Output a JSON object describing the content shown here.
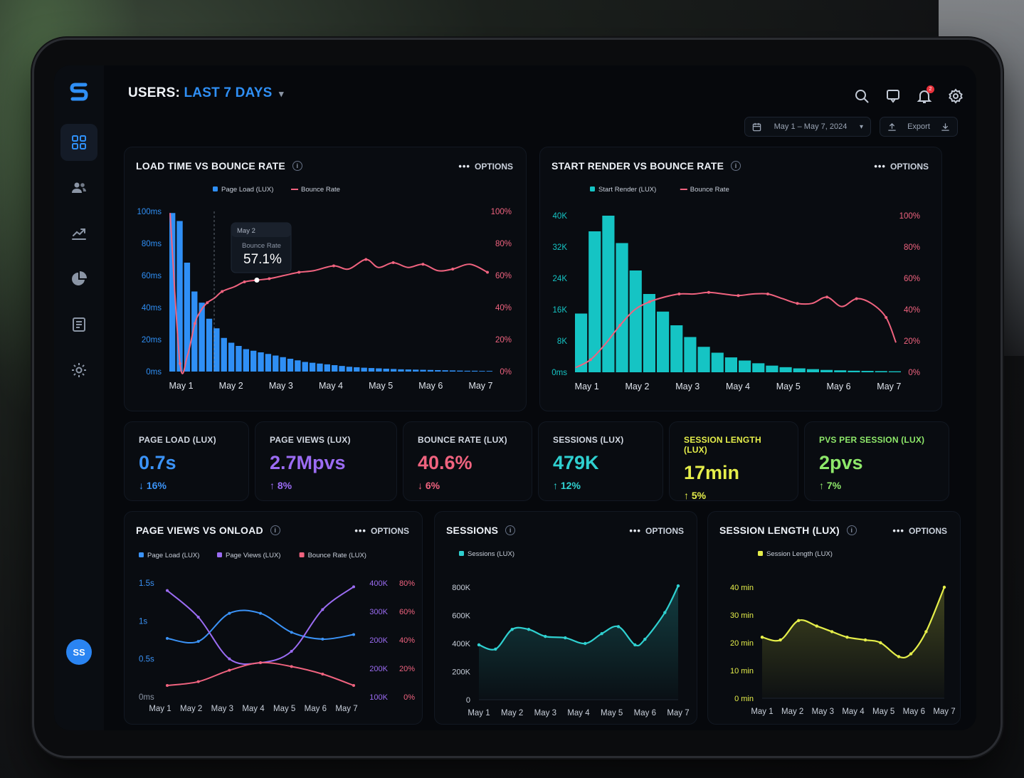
{
  "header": {
    "users_label": "USERS:",
    "period": "LAST 7 DAYS"
  },
  "toolbar": {
    "date_range": "May 1 – May 7, 2024",
    "export_label": "Export"
  },
  "notifications": {
    "count": "2"
  },
  "user": {
    "initials": "SS"
  },
  "options_label": "OPTIONS",
  "cards": {
    "load": {
      "title": "LOAD TIME VS BOUNCE RATE"
    },
    "render": {
      "title": "START RENDER VS BOUNCE RATE"
    },
    "pvo": {
      "title": "PAGE VIEWS VS ONLOAD"
    },
    "sessions": {
      "title": "SESSIONS"
    },
    "slen": {
      "title": "SESSION LENGTH (LUX)"
    }
  },
  "tooltip": {
    "date": "May 2",
    "label": "Bounce Rate",
    "value": "57.1%"
  },
  "stats": [
    {
      "label": "PAGE LOAD (LUX)",
      "value": "0.7s",
      "delta": "↓ 16%",
      "color": "#3b93f7"
    },
    {
      "label": "PAGE VIEWS (LUX)",
      "value": "2.7Mpvs",
      "delta": "↑ 8%",
      "color": "#9b6cf3"
    },
    {
      "label": "BOUNCE RATE (LUX)",
      "value": "40.6%",
      "delta": "↓ 6%",
      "color": "#f0637f"
    },
    {
      "label": "SESSIONS (LUX)",
      "value": "479K",
      "delta": "↑ 12%",
      "color": "#2fd0d0"
    },
    {
      "label": "SESSION LENGTH (LUX)",
      "value": "17min",
      "delta": "↑ 5%",
      "color": "#e5ee4a"
    },
    {
      "label": "PVS PER SESSION (LUX)",
      "value": "2pvs",
      "delta": "↑ 7%",
      "color": "#8ee86a"
    }
  ],
  "colors": {
    "blue": "#2f8ff5",
    "teal": "#15c4c4",
    "pink": "#f0637f",
    "purple": "#9b6cf3",
    "yellow": "#e5ee4a",
    "cyan": "#2fd0d0"
  },
  "chart_data": [
    {
      "type": "bar",
      "id": "load",
      "title": "LOAD TIME VS BOUNCE RATE",
      "x_ticks": [
        "May 1",
        "May 2",
        "May 3",
        "May 4",
        "May 5",
        "May 6",
        "May 7"
      ],
      "y_left_ticks": [
        "0ms",
        "20ms",
        "40ms",
        "60ms",
        "80ms",
        "100ms"
      ],
      "y_right_ticks": [
        "0%",
        "20%",
        "40%",
        "60%",
        "80%",
        "100%"
      ],
      "ylim_left": [
        0,
        100
      ],
      "ylim_right": [
        0,
        100
      ],
      "series": [
        {
          "name": "Page Load (LUX)",
          "kind": "bar",
          "color": "#2f8ff5",
          "values": [
            99,
            94,
            68,
            50,
            43,
            33,
            27,
            21,
            18,
            16,
            14,
            13,
            12,
            11,
            10,
            9,
            8,
            7,
            6,
            5.5,
            5,
            4.5,
            4,
            3.5,
            3,
            2.7,
            2.4,
            2.2,
            2,
            1.8,
            1.6,
            1.4,
            1.3,
            1.2,
            1.1,
            1,
            0.9,
            0.8,
            0.7,
            0.6,
            0.5,
            0.5,
            0.4,
            0.4
          ]
        },
        {
          "name": "Bounce Rate",
          "kind": "line",
          "color": "#f0637f",
          "x": [
            0,
            0.2,
            0.35,
            0.5,
            0.62,
            0.75,
            0.9,
            1.05,
            1.3,
            1.5,
            1.75,
            2.0,
            2.3,
            2.6,
            2.9,
            3.3,
            3.6,
            3.95,
            4.2,
            4.5,
            4.8,
            5.1,
            5.4,
            5.7,
            6.05,
            6.4
          ],
          "values": [
            99,
            5,
            10,
            30,
            38,
            43,
            46,
            50,
            53,
            56,
            57.1,
            58,
            60,
            62,
            63,
            66,
            64,
            70,
            65,
            68,
            65,
            67,
            63,
            64,
            67,
            62
          ]
        }
      ]
    },
    {
      "type": "bar",
      "id": "render",
      "title": "START RENDER VS BOUNCE RATE",
      "x_ticks": [
        "May 1",
        "May 2",
        "May 3",
        "May 4",
        "May 5",
        "May 6",
        "May 7"
      ],
      "y_left_ticks": [
        "0ms",
        "8K",
        "16K",
        "24K",
        "32K",
        "40K"
      ],
      "y_right_ticks": [
        "0%",
        "20%",
        "40%",
        "60%",
        "80%",
        "100%"
      ],
      "ylim_left": [
        0,
        40
      ],
      "ylim_right": [
        0,
        100
      ],
      "series": [
        {
          "name": "Start Render (LUX)",
          "kind": "bar",
          "color": "#15c4c4",
          "values": [
            15,
            36,
            40,
            33,
            26,
            20,
            15.5,
            12,
            9,
            6.5,
            5,
            3.8,
            3,
            2.3,
            1.7,
            1.3,
            1,
            0.8,
            0.6,
            0.5,
            0.4,
            0.35,
            0.3,
            0.25
          ]
        },
        {
          "name": "Bounce Rate",
          "kind": "line",
          "color": "#f0637f",
          "x": [
            0,
            0.3,
            0.6,
            0.9,
            1.2,
            1.5,
            1.8,
            2.1,
            2.4,
            2.7,
            3.0,
            3.3,
            3.6,
            3.9,
            4.2,
            4.5,
            4.8,
            5.1,
            5.4,
            5.7,
            6.0,
            6.3,
            6.5
          ],
          "values": [
            3,
            8,
            18,
            30,
            40,
            45,
            48,
            50,
            50,
            51,
            50,
            49,
            50,
            50,
            47,
            44,
            44,
            48,
            42,
            47,
            44,
            35,
            19
          ]
        }
      ]
    },
    {
      "type": "line",
      "id": "pvo",
      "title": "PAGE VIEWS VS ONLOAD",
      "x_ticks": [
        "May 1",
        "May 2",
        "May 3",
        "May 4",
        "May 5",
        "May 6",
        "May 7"
      ],
      "y_left_ticks": [
        "0ms",
        "0.5s",
        "1s",
        "1.5s"
      ],
      "y_mid_ticks": [
        "100K",
        "200K",
        "200K",
        "300K",
        "400K"
      ],
      "y_right_ticks": [
        "0%",
        "20%",
        "40%",
        "60%",
        "80%"
      ],
      "series": [
        {
          "name": "Page Load (LUX)",
          "color": "#3b93f7",
          "values": [
            0.77,
            0.73,
            1.1,
            1.1,
            0.85,
            0.76,
            0.82
          ]
        },
        {
          "name": "Page Views (LUX)",
          "color": "#9b6cf3",
          "values": [
            1.4,
            1.05,
            0.5,
            0.45,
            0.6,
            1.15,
            1.45
          ]
        },
        {
          "name": "Bounce Rate (LUX)",
          "color": "#f0637f",
          "values": [
            0.15,
            0.2,
            0.35,
            0.45,
            0.4,
            0.3,
            0.15
          ]
        }
      ]
    },
    {
      "type": "area",
      "id": "sessions",
      "title": "SESSIONS",
      "x_ticks": [
        "May 1",
        "May 2",
        "May 3",
        "May 4",
        "May 5",
        "May 6",
        "May 7"
      ],
      "y_ticks": [
        "0",
        "200K",
        "400K",
        "600K",
        "800K"
      ],
      "ylim": [
        0,
        800
      ],
      "series": [
        {
          "name": "Sessions (LUX)",
          "color": "#2fd0d0",
          "x": [
            0,
            0.5,
            1.0,
            1.5,
            2.0,
            2.6,
            3.2,
            3.7,
            4.2,
            4.7,
            5.0,
            5.6,
            6.0
          ],
          "values": [
            390,
            360,
            500,
            500,
            450,
            440,
            400,
            470,
            520,
            390,
            430,
            620,
            810
          ]
        }
      ]
    },
    {
      "type": "area",
      "id": "slen",
      "title": "SESSION LENGTH (LUX)",
      "x_ticks": [
        "May 1",
        "May 2",
        "May 3",
        "May 4",
        "May 5",
        "May 6",
        "May 7"
      ],
      "y_ticks": [
        "0 min",
        "10 min",
        "20 min",
        "30 min",
        "40 min"
      ],
      "ylim": [
        0,
        40
      ],
      "series": [
        {
          "name": "Session Length (LUX)",
          "color": "#e5ee4a",
          "x": [
            0,
            0.6,
            1.2,
            1.8,
            2.3,
            2.8,
            3.4,
            3.9,
            4.5,
            4.9,
            5.4,
            6.0
          ],
          "values": [
            22,
            21,
            28,
            26,
            24,
            22,
            21,
            20,
            15,
            16,
            24,
            40
          ]
        }
      ]
    }
  ]
}
